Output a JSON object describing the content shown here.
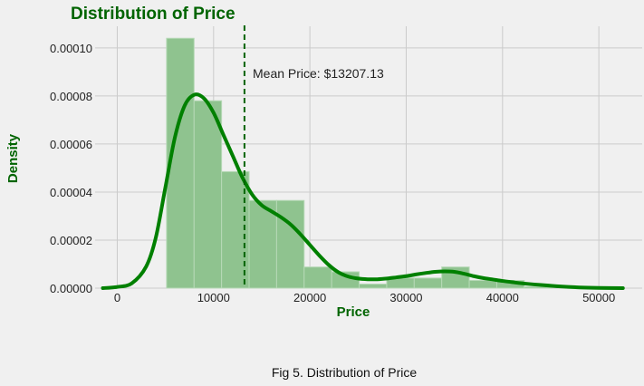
{
  "chart_data": {
    "type": "histogram",
    "title": "Distribution of Price",
    "xlabel": "Price",
    "ylabel": "Density",
    "xlim": [
      -2300,
      54500
    ],
    "ylim": [
      0,
      0.000109
    ],
    "xticks": [
      {
        "value": 0,
        "label": "0"
      },
      {
        "value": 10000,
        "label": "10000"
      },
      {
        "value": 20000,
        "label": "20000"
      },
      {
        "value": 30000,
        "label": "30000"
      },
      {
        "value": 40000,
        "label": "40000"
      },
      {
        "value": 50000,
        "label": "50000"
      }
    ],
    "yticks": [
      {
        "value": 0,
        "label": "0.00000"
      },
      {
        "value": 2e-05,
        "label": "0.00002"
      },
      {
        "value": 4e-05,
        "label": "0.00004"
      },
      {
        "value": 6e-05,
        "label": "0.00006"
      },
      {
        "value": 8e-05,
        "label": "0.00008"
      },
      {
        "value": 0.0001,
        "label": "0.00010"
      }
    ],
    "grid": true,
    "bins": [
      {
        "x0": 5118,
        "x1": 7975,
        "density": 0.000104
      },
      {
        "x0": 7975,
        "x1": 10832,
        "density": 7.8e-05
      },
      {
        "x0": 10832,
        "x1": 13689,
        "density": 4.85e-05
      },
      {
        "x0": 13689,
        "x1": 16546,
        "density": 3.65e-05
      },
      {
        "x0": 16546,
        "x1": 19403,
        "density": 3.65e-05
      },
      {
        "x0": 19403,
        "x1": 22260,
        "density": 8.8e-06
      },
      {
        "x0": 22260,
        "x1": 25117,
        "density": 6.8e-06
      },
      {
        "x0": 25117,
        "x1": 27974,
        "density": 1.7e-06
      },
      {
        "x0": 27974,
        "x1": 30831,
        "density": 4.2e-06
      },
      {
        "x0": 30831,
        "x1": 33688,
        "density": 4.2e-06
      },
      {
        "x0": 33688,
        "x1": 36545,
        "density": 8.8e-06
      },
      {
        "x0": 36545,
        "x1": 39402,
        "density": 3.2e-06
      },
      {
        "x0": 39402,
        "x1": 42259,
        "density": 3.2e-06
      },
      {
        "x0": 42259,
        "x1": 45116,
        "density": 6e-07
      }
    ],
    "kde": {
      "x": [
        -1500,
        0,
        1500,
        3000,
        4000,
        5000,
        6000,
        7000,
        8000,
        9000,
        10000,
        11000,
        12000,
        13000,
        14000,
        15000,
        16000,
        17000,
        18000,
        19000,
        20000,
        21000,
        22000,
        23000,
        24000,
        25000,
        26000,
        27000,
        28000,
        29000,
        30000,
        31000,
        32000,
        33000,
        34000,
        35000,
        36000,
        37000,
        38000,
        39000,
        40000,
        41000,
        42000,
        44000,
        46000,
        48000,
        50000,
        52500
      ],
      "y": [
        0,
        5e-07,
        2e-06,
        9e-06,
        2.1e-05,
        4.2e-05,
        6.3e-05,
        7.6e-05,
        8.05e-05,
        7.9e-05,
        7.3e-05,
        6.4e-05,
        5.5e-05,
        4.6e-05,
        3.9e-05,
        3.45e-05,
        3.2e-05,
        2.95e-05,
        2.65e-05,
        2.25e-05,
        1.8e-05,
        1.35e-05,
        9.5e-06,
        6.5e-06,
        4.8e-06,
        4e-06,
        3.7e-06,
        3.7e-06,
        4e-06,
        4.5e-06,
        5e-06,
        5.7e-06,
        6.3e-06,
        6.8e-06,
        7e-06,
        6.8e-06,
        6e-06,
        5e-06,
        4.2e-06,
        3.6e-06,
        3e-06,
        2.5e-06,
        2e-06,
        1.3e-06,
        7e-07,
        3e-07,
        1e-07,
        0
      ]
    },
    "mean_line": {
      "value": 13207.13,
      "label": "Mean Price: $13207.13"
    },
    "caption": "Fig 5. Distribution of Price"
  },
  "colors": {
    "background": "#f0f0f0",
    "grid": "#cbcbcb",
    "bar_fill": "#8fc38f",
    "bar_edge": "#b7d9b7",
    "kde_line": "#008000",
    "mean_line": "#006400",
    "title_text": "#006400",
    "axis_label_text": "#006400"
  }
}
